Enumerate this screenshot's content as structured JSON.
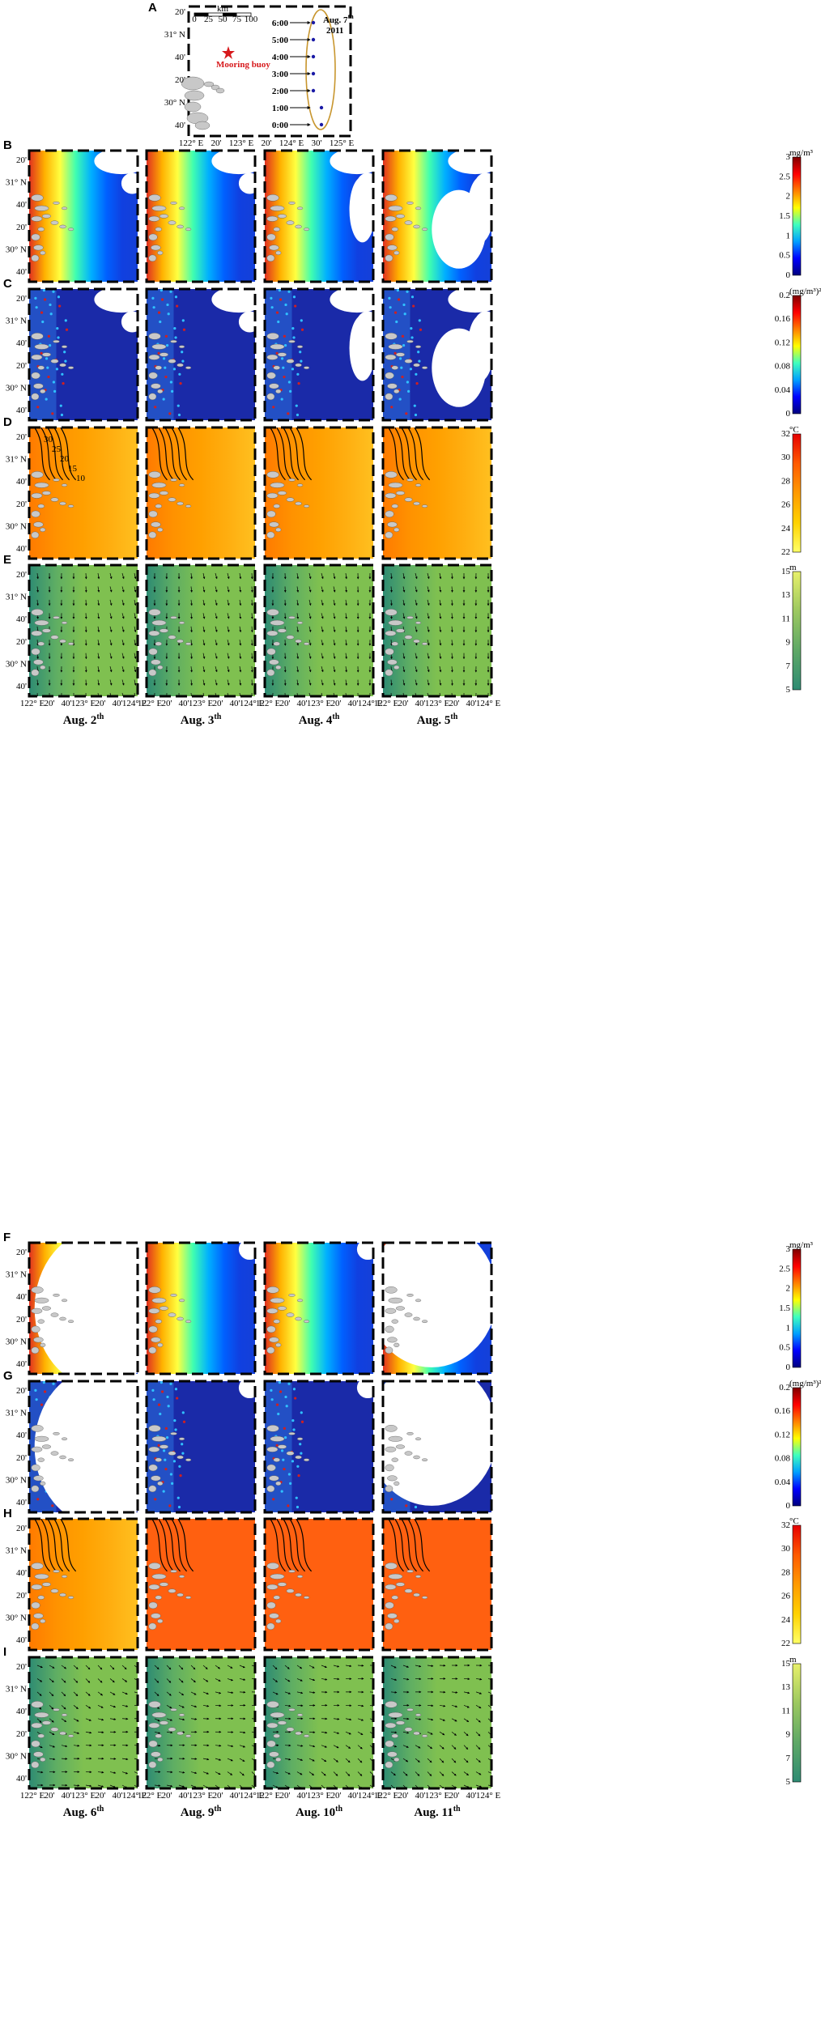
{
  "panel_a": {
    "label": "A",
    "buoy_label": "Mooring buoy",
    "date_label": "Aug. 7",
    "date_sup": "th",
    "year": "2011",
    "times": [
      "6:00",
      "5:00",
      "4:00",
      "3:00",
      "2:00",
      "1:00",
      "0:00"
    ],
    "lat_ticks": [
      "20'",
      "31° N",
      "40'",
      "20'",
      "30° N",
      "40'"
    ],
    "lon_ticks": [
      "122° E",
      "20'",
      "123° E",
      "20'",
      "124° E",
      "30'",
      "125° E"
    ],
    "scalebar_unit": "km",
    "scalebar_ticks": [
      "0",
      "25",
      "50",
      "75",
      "100"
    ],
    "colors": {
      "buoy": "#d7191c",
      "track": "#1a1aa6",
      "ellipse": "#c8962e"
    }
  },
  "rows": [
    {
      "id": "B",
      "label": "B",
      "group": 0,
      "kind": "chl"
    },
    {
      "id": "C",
      "label": "C",
      "group": 0,
      "kind": "var"
    },
    {
      "id": "D",
      "label": "D",
      "group": 0,
      "kind": "sst"
    },
    {
      "id": "E",
      "label": "E",
      "group": 0,
      "kind": "depth"
    },
    {
      "id": "F",
      "label": "F",
      "group": 1,
      "kind": "chl"
    },
    {
      "id": "G",
      "label": "G",
      "group": 1,
      "kind": "var"
    },
    {
      "id": "H",
      "label": "H",
      "group": 1,
      "kind": "sst"
    },
    {
      "id": "I",
      "label": "I",
      "group": 1,
      "kind": "depth"
    }
  ],
  "map_ticks": {
    "lat": [
      "20'",
      "31° N",
      "40'",
      "20'",
      "30° N",
      "40'"
    ],
    "lon": [
      "122° E",
      "20'",
      "40'",
      "123° E",
      "20'",
      "40'",
      "124° E"
    ]
  },
  "groups": [
    {
      "dates": [
        {
          "text": "Aug. 2",
          "sup": "th"
        },
        {
          "text": "Aug. 3",
          "sup": "th"
        },
        {
          "text": "Aug. 4",
          "sup": "th"
        },
        {
          "text": "Aug. 5",
          "sup": "th"
        }
      ]
    },
    {
      "dates": [
        {
          "text": "Aug. 6",
          "sup": "th"
        },
        {
          "text": "Aug. 9",
          "sup": "th"
        },
        {
          "text": "Aug. 10",
          "sup": "th"
        },
        {
          "text": "Aug. 11",
          "sup": "th"
        }
      ]
    }
  ],
  "colorbars": {
    "chl": {
      "unit": "mg/m³",
      "ticks": [
        "3",
        "2.5",
        "2",
        "1.5",
        "1",
        "0.5",
        "0"
      ],
      "colors": [
        "#00007f",
        "#0000ff",
        "#00a0ff",
        "#3fffbf",
        "#ffff00",
        "#ff7f00",
        "#ff0000",
        "#7f0000"
      ]
    },
    "var": {
      "unit": "(mg/m³)²",
      "ticks": [
        "0.2",
        "0.16",
        "0.12",
        "0.08",
        "0.04",
        "0"
      ],
      "colors": [
        "#00007f",
        "#0000ff",
        "#00a0ff",
        "#3fffbf",
        "#ffff00",
        "#ff7f00",
        "#ff0000",
        "#7f0000"
      ]
    },
    "sst": {
      "unit": "°C",
      "ticks": [
        "32",
        "30",
        "28",
        "26",
        "24",
        "22"
      ],
      "colors": [
        "#e60000",
        "#ff5a00",
        "#ff9a00",
        "#ffd200",
        "#ffff66"
      ]
    },
    "depth": {
      "unit": "m",
      "ticks": [
        "15",
        "13",
        "11",
        "9",
        "7",
        "5"
      ],
      "colors": [
        "#2e8b73",
        "#5ea866",
        "#9cc860",
        "#e8f06a"
      ]
    }
  },
  "contour_labels": [
    "30",
    "25",
    "20",
    "15",
    "10"
  ],
  "colors": {
    "land": "#c8c8c8",
    "frame": "#000000"
  }
}
